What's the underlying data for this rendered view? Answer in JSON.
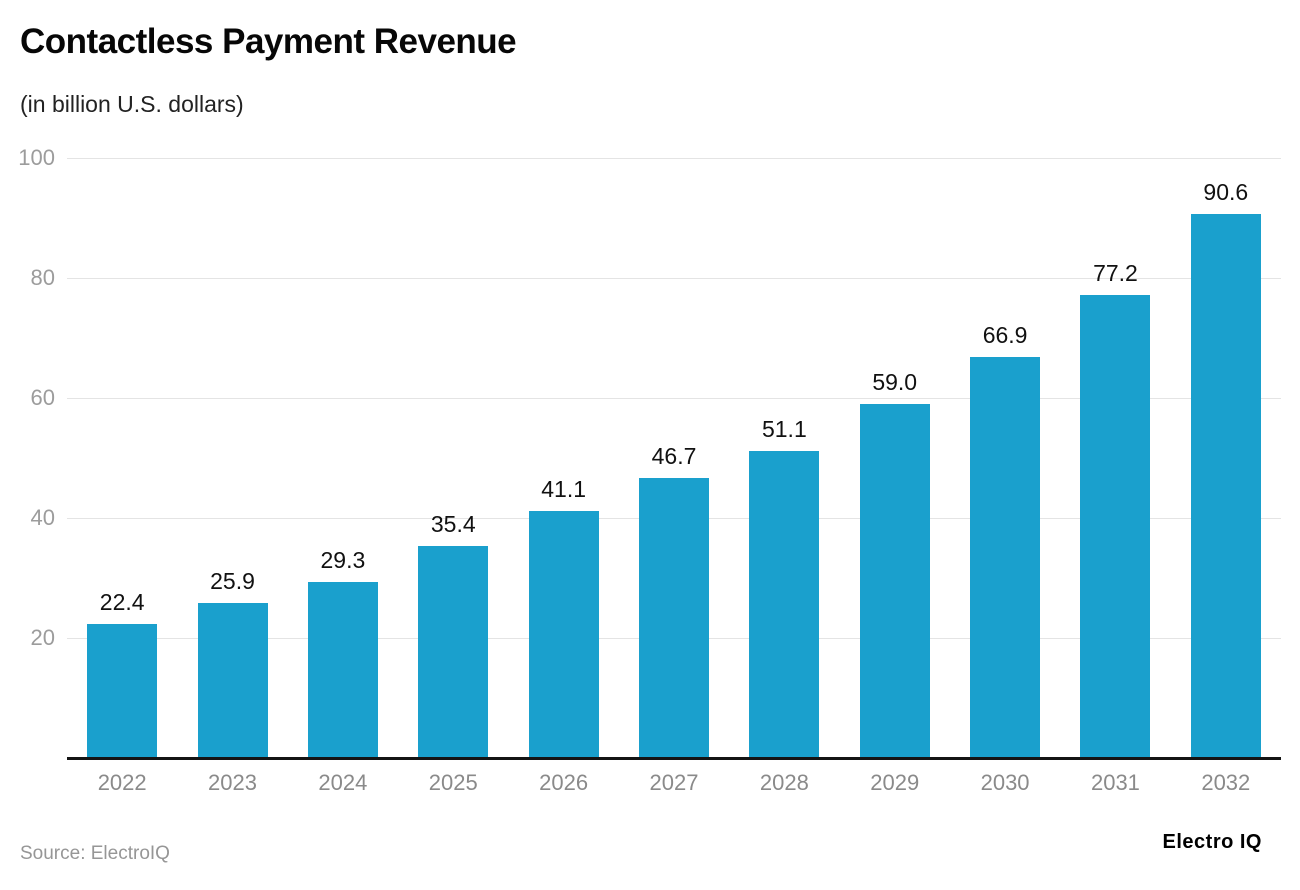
{
  "header": {
    "title": "Contactless Payment Revenue",
    "subtitle": "(in billion U.S. dollars)"
  },
  "footer": {
    "source": "Source: ElectroIQ",
    "brand": "Electro IQ"
  },
  "chart_data": {
    "type": "bar",
    "title": "Contactless Payment Revenue",
    "subtitle": "(in billion U.S. dollars)",
    "categories": [
      "2022",
      "2023",
      "2024",
      "2025",
      "2026",
      "2027",
      "2028",
      "2029",
      "2030",
      "2031",
      "2032"
    ],
    "values": [
      22.4,
      25.9,
      29.3,
      35.4,
      41.1,
      46.7,
      51.1,
      59.0,
      66.9,
      77.2,
      90.6
    ],
    "xlabel": "",
    "ylabel": "",
    "ylim": [
      0,
      100
    ],
    "yticks": [
      20,
      40,
      60,
      80,
      100
    ],
    "grid": "horizontal",
    "legend": "none",
    "value_labels": true,
    "value_label_decimals": 1,
    "bar_color": "#1aa0cd",
    "grid_color": "#e4e4e4",
    "axis_color": "#141414",
    "ytick_text_color": "#9c9c9c",
    "xtick_text_color": "#8a8a8a",
    "value_label_color": "#111111"
  }
}
